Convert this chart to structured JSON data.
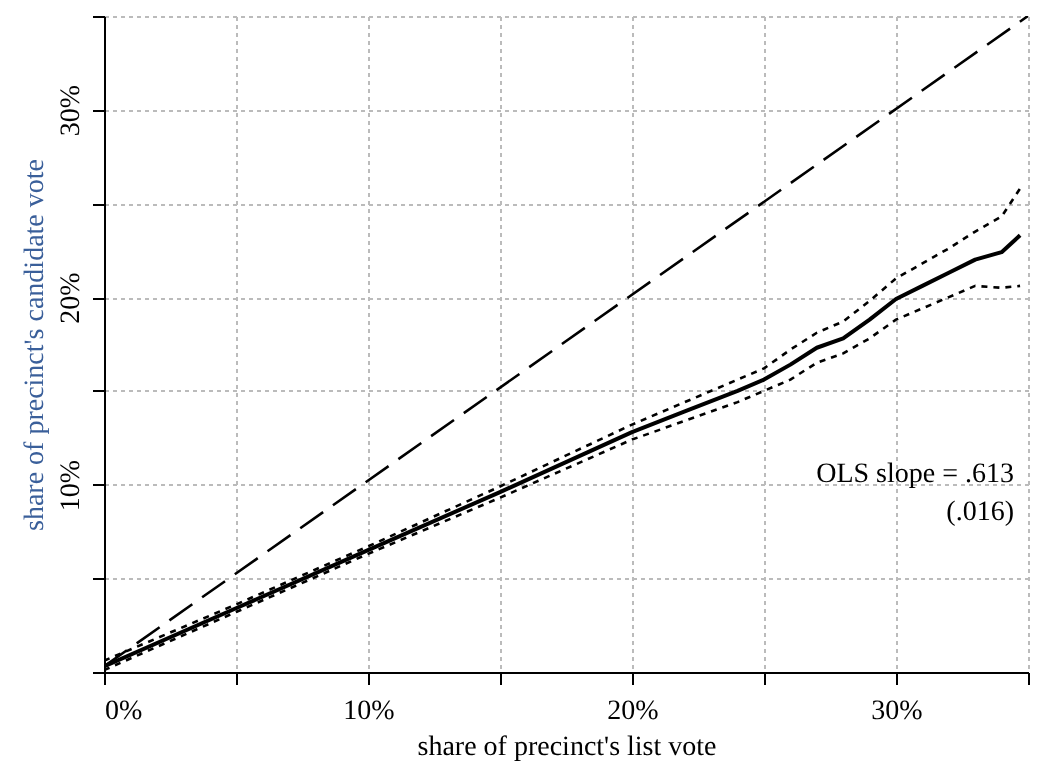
{
  "chart_data": {
    "type": "line",
    "xlabel": "share of precinct's list vote",
    "ylabel": "share of precinct's candidate vote",
    "annotations": [
      "OLS slope = .613",
      "(.016)"
    ],
    "xlim": [
      0,
      35
    ],
    "ylim": [
      0,
      35
    ],
    "xticks": [
      {
        "value": 0,
        "label": "0%"
      },
      {
        "value": 5,
        "label": null
      },
      {
        "value": 10,
        "label": "10%"
      },
      {
        "value": 15,
        "label": null
      },
      {
        "value": 20,
        "label": "20%"
      },
      {
        "value": 25,
        "label": null
      },
      {
        "value": 30,
        "label": "30%"
      },
      {
        "value": 35,
        "label": null
      }
    ],
    "yticks": [
      {
        "value": 0,
        "label": null
      },
      {
        "value": 5,
        "label": null
      },
      {
        "value": 10,
        "label": "10%"
      },
      {
        "value": 15,
        "label": null
      },
      {
        "value": 20,
        "label": "20%"
      },
      {
        "value": 25,
        "label": null
      },
      {
        "value": 30,
        "label": "30%"
      },
      {
        "value": 35,
        "label": null
      }
    ],
    "grid": true,
    "series": [
      {
        "color": "#000000",
        "line_style": "dashed",
        "x": [
          0,
          35
        ],
        "values": [
          0.3,
          35
        ]
      },
      {
        "color": "#000000",
        "line_style": "solid",
        "x": [
          0,
          5,
          10,
          15,
          20,
          22,
          24,
          25,
          26,
          27,
          28,
          29,
          30,
          31,
          32,
          33,
          34,
          34.7
        ],
        "values": [
          0.3,
          3.4,
          6.5,
          9.6,
          12.8,
          13.9,
          15.0,
          15.6,
          16.4,
          17.3,
          17.8,
          18.8,
          19.9,
          20.6,
          21.3,
          22.0,
          22.4,
          23.3
        ]
      },
      {
        "color": "#000000",
        "line_style": "dotted",
        "x": [
          0,
          5,
          10,
          15,
          20,
          22,
          24,
          25,
          26,
          27,
          28,
          29,
          30,
          31,
          32,
          33,
          34,
          34.7
        ],
        "values": [
          0.1,
          3.2,
          6.3,
          9.3,
          12.4,
          13.4,
          14.4,
          15.0,
          15.6,
          16.5,
          17.0,
          17.8,
          18.8,
          19.4,
          20.0,
          20.6,
          20.5,
          20.6
        ]
      },
      {
        "color": "#000000",
        "line_style": "dotted",
        "x": [
          0,
          5,
          10,
          15,
          20,
          22,
          24,
          25,
          26,
          27,
          28,
          29,
          30,
          31,
          32,
          33,
          34,
          34.7
        ],
        "values": [
          0.6,
          3.6,
          6.7,
          9.9,
          13.2,
          14.4,
          15.6,
          16.2,
          17.2,
          18.1,
          18.7,
          19.8,
          21.0,
          21.8,
          22.6,
          23.5,
          24.3,
          25.8
        ]
      }
    ]
  }
}
